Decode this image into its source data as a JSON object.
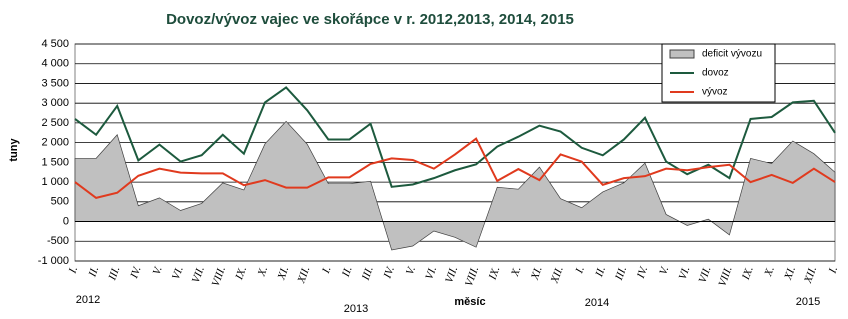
{
  "chart_data": {
    "type": "line",
    "title": "Dovoz/vývoz vajec ve skořápce v r. 2012,2013, 2014, 2015",
    "y_label": "tuny",
    "x_label": "měsíc",
    "categories": [
      "I.",
      "II.",
      "III.",
      "IV.",
      "V.",
      "VI.",
      "VII.",
      "VIII.",
      "IX.",
      "X.",
      "XI.",
      "XII.",
      "I.",
      "II.",
      "III.",
      "IV.",
      "V.",
      "VI.",
      "VII.",
      "VIII.",
      "IX.",
      "X.",
      "XI.",
      "XII.",
      "I.",
      "II.",
      "III.",
      "IV.",
      "V.",
      "VI.",
      "VII.",
      "VIII.",
      "IX.",
      "X.",
      "XI.",
      "XII.",
      "I."
    ],
    "years": [
      "2012",
      "2013",
      "2014",
      "2015"
    ],
    "series": [
      {
        "name": "deficit vývozu",
        "kind": "area",
        "color": "#c0c0c0",
        "values": [
          1600,
          1600,
          2200,
          400,
          600,
          280,
          460,
          980,
          800,
          1970,
          2540,
          1960,
          960,
          960,
          1020,
          -720,
          -620,
          -240,
          -400,
          -650,
          870,
          820,
          1380,
          580,
          350,
          750,
          980,
          1480,
          180,
          -100,
          60,
          -340,
          1600,
          1470,
          2040,
          1720,
          1250
        ]
      },
      {
        "name": "dovoz",
        "kind": "line",
        "color": "#1d5a3e",
        "values": [
          2600,
          2200,
          2930,
          1550,
          1950,
          1520,
          1680,
          2200,
          1720,
          3020,
          3400,
          2820,
          2080,
          2080,
          2480,
          880,
          940,
          1100,
          1300,
          1450,
          1900,
          2150,
          2430,
          2280,
          1870,
          1680,
          2080,
          2630,
          1520,
          1200,
          1440,
          1100,
          2600,
          2650,
          3020,
          3060,
          2250
        ]
      },
      {
        "name": "vývoz",
        "kind": "line",
        "color": "#e03a1e",
        "values": [
          1000,
          600,
          730,
          1160,
          1340,
          1240,
          1220,
          1220,
          920,
          1050,
          860,
          860,
          1120,
          1120,
          1460,
          1600,
          1560,
          1340,
          1700,
          2100,
          1030,
          1330,
          1050,
          1700,
          1520,
          930,
          1100,
          1150,
          1340,
          1300,
          1380,
          1440,
          1000,
          1180,
          980,
          1340,
          1000
        ]
      }
    ],
    "ylim": [
      -1000,
      4500
    ],
    "yticks": [
      {
        "value": -1000,
        "label": "-1 000"
      },
      -500,
      0,
      500,
      {
        "value": 1000,
        "label": "1 000"
      },
      {
        "value": 1500,
        "label": "1 500"
      },
      {
        "value": 2000,
        "label": "2 000"
      },
      {
        "value": 2500,
        "label": "2 500"
      },
      {
        "value": 3000,
        "label": "3 000"
      },
      {
        "value": 3500,
        "label": "3 500"
      },
      {
        "value": 4000,
        "label": "4 000"
      },
      {
        "value": 4500,
        "label": "4 500"
      }
    ],
    "grid": true,
    "legend": "top-right"
  }
}
